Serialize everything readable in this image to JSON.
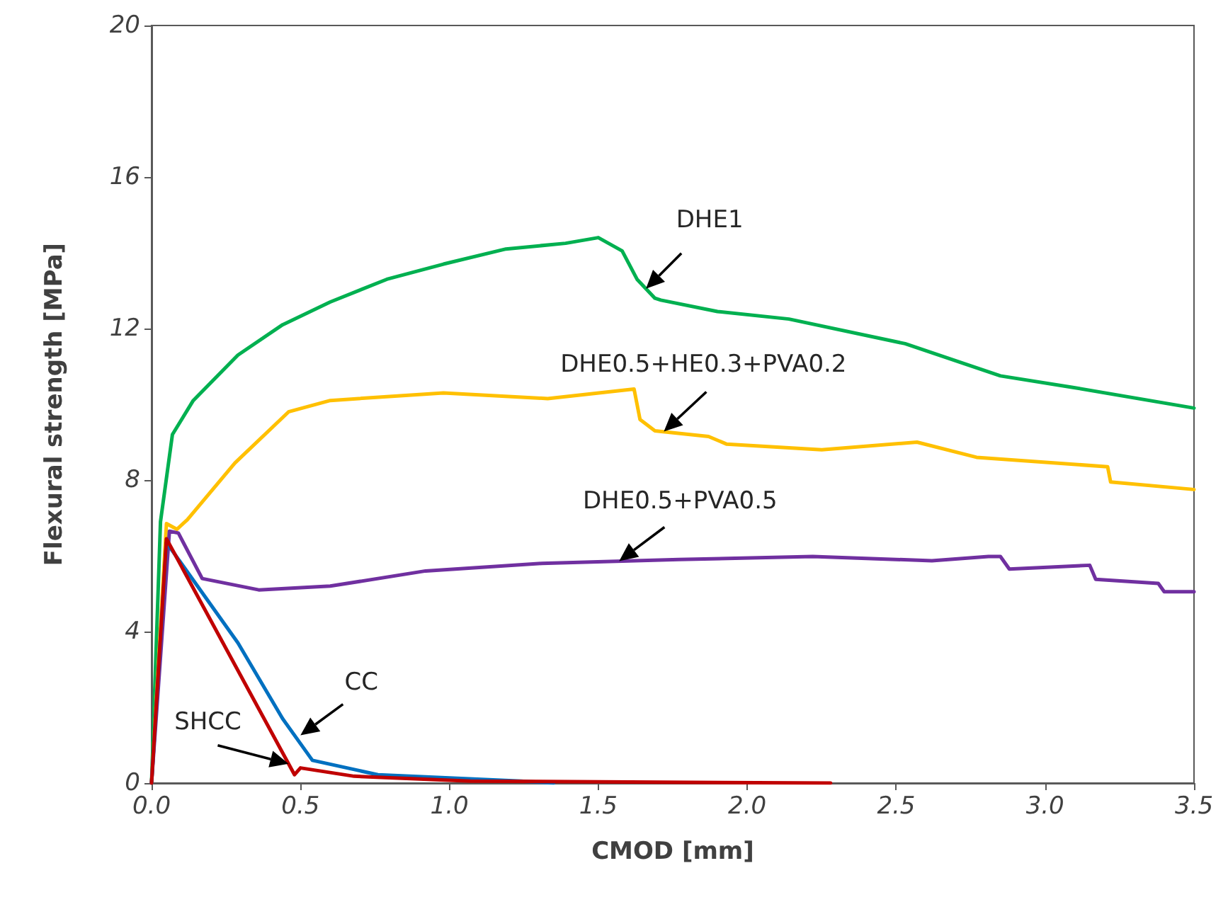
{
  "chart_data": {
    "type": "line",
    "xlabel": "CMOD [mm]",
    "ylabel": "Flexural strength [MPa]",
    "xlim": [
      0,
      3.5
    ],
    "ylim": [
      0,
      20
    ],
    "xticks": [
      {
        "value": 0,
        "label": "0.0"
      },
      {
        "value": 0.5,
        "label": "0.5"
      },
      {
        "value": 1,
        "label": "1.0"
      },
      {
        "value": 1.5,
        "label": "1.5"
      },
      {
        "value": 2,
        "label": "2.0"
      },
      {
        "value": 2.5,
        "label": "2.5"
      },
      {
        "value": 3,
        "label": "3.0"
      },
      {
        "value": 3.5,
        "label": "3.5"
      }
    ],
    "yticks": [
      0,
      4,
      8,
      12,
      16,
      20
    ],
    "grid": false,
    "marker": "none",
    "line_style": "solid",
    "series": [
      {
        "color": "#00b050",
        "x": [
          0,
          0.03,
          0.07,
          0.14,
          0.29,
          0.44,
          0.6,
          0.79,
          0.98,
          1.19,
          1.39,
          1.5,
          1.58,
          1.63,
          1.69,
          1.71,
          1.9,
          2.14,
          2.53,
          2.85,
          3.09,
          3.5
        ],
        "values": [
          0,
          6.9,
          9.2,
          10.1,
          11.3,
          12.1,
          12.7,
          13.3,
          13.7,
          14.1,
          14.25,
          14.4,
          14.05,
          13.3,
          12.8,
          12.75,
          12.45,
          12.25,
          11.6,
          10.75,
          10.45,
          9.9
        ]
      },
      {
        "color": "#ffc000",
        "x": [
          0,
          0.05,
          0.085,
          0.12,
          0.28,
          0.46,
          0.6,
          0.98,
          1.33,
          1.62,
          1.64,
          1.69,
          1.87,
          1.93,
          2.25,
          2.57,
          2.77,
          3.21,
          3.22,
          3.5
        ],
        "values": [
          0,
          6.85,
          6.7,
          6.95,
          8.45,
          9.8,
          10.1,
          10.3,
          10.15,
          10.4,
          9.6,
          9.3,
          9.15,
          8.95,
          8.8,
          9.0,
          8.6,
          8.35,
          7.95,
          7.75
        ]
      },
      {
        "color": "#7030a0",
        "x": [
          0,
          0.06,
          0.09,
          0.17,
          0.36,
          0.6,
          0.92,
          1.31,
          1.77,
          2.22,
          2.62,
          2.81,
          2.85,
          2.88,
          3.15,
          3.17,
          3.38,
          3.4,
          3.5
        ],
        "values": [
          0,
          6.65,
          6.6,
          5.4,
          5.1,
          5.2,
          5.6,
          5.8,
          5.9,
          5.98,
          5.87,
          5.98,
          5.98,
          5.65,
          5.75,
          5.38,
          5.27,
          5.05,
          5.05
        ]
      },
      {
        "color": "#0070c0",
        "x": [
          0,
          0.05,
          0.29,
          0.44,
          0.54,
          0.76,
          1.24,
          1.35
        ],
        "values": [
          0,
          6.35,
          3.7,
          1.7,
          0.6,
          0.22,
          0.05,
          0
        ]
      },
      {
        "color": "#c00000",
        "x": [
          0,
          0.05,
          0.48,
          0.5,
          0.68,
          1.07,
          2.28
        ],
        "values": [
          0,
          6.45,
          0.22,
          0.4,
          0.18,
          0.05,
          0
        ]
      }
    ],
    "annotations": [
      {
        "text": "DHE1",
        "x": 1.66,
        "y": 13.05
      },
      {
        "text": "DHE0.5+HE0.3+PVA0.2",
        "x": 1.72,
        "y": 9.28
      },
      {
        "text": "DHE0.5+PVA0.5",
        "x": 1.57,
        "y": 5.86
      },
      {
        "text": "CC",
        "x": 0.5,
        "y": 1.26
      },
      {
        "text": "SHCC",
        "x": 0.46,
        "y": 0.51
      }
    ]
  }
}
